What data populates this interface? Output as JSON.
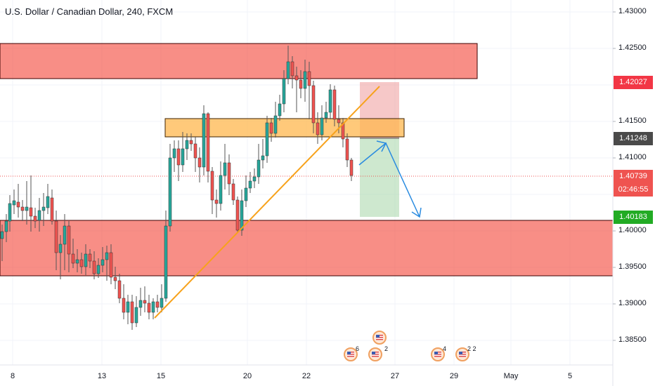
{
  "title": "U.S. Dollar / Canadian Dollar, 240, FXCM",
  "price_axis": {
    "ticks": [
      "1.43000",
      "1.42500",
      "1.41500",
      "1.41000",
      "1.40000",
      "1.39500",
      "1.39000",
      "1.38500"
    ],
    "tags": {
      "upper": "1.42027",
      "mid": "1.41248",
      "last": "1.40739",
      "countdown": "02:46:55",
      "lower": "1.40183"
    },
    "colors": {
      "upper": "#f23645",
      "mid": "#4a4a4a",
      "last": "#ef5350",
      "lower": "#22ab24"
    }
  },
  "time_axis": {
    "labels": [
      "8",
      "13",
      "15",
      "20",
      "22",
      "27",
      "29",
      "May",
      "5"
    ]
  },
  "events": [
    {
      "icon": "us-flag-icon",
      "count": "6"
    },
    {
      "icon": "us-flag-icon",
      "count": ""
    },
    {
      "icon": "us-flag-icon",
      "count": "2"
    },
    {
      "icon": "us-flag-icon",
      "count": "4"
    },
    {
      "icon": "us-flag-icon",
      "count": "2 2"
    }
  ],
  "colors": {
    "bull": "#26a69a",
    "bear": "#ef5350",
    "zone_red": "#f44336",
    "zone_orange": "#ffb74d",
    "trendline": "#f7a21b",
    "projection": "#2a8be0",
    "target_green": "#a5d6a7",
    "stop_red": "#ef9a9a"
  }
}
